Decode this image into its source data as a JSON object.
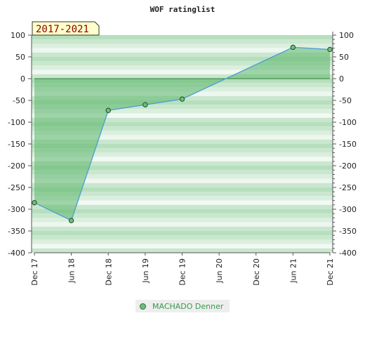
{
  "chart_data": {
    "type": "area",
    "title": "WOF ratinglist",
    "period_badge": "2017-2021",
    "x_labels": [
      "Dec 17",
      "Jun 18",
      "Dec 18",
      "Jun 19",
      "Dec 19",
      "Jun 20",
      "Dec 20",
      "Jun 21",
      "Dec 21"
    ],
    "y_ticks": [
      100,
      50,
      0,
      -50,
      -100,
      -150,
      -200,
      -250,
      -300,
      -350,
      -400
    ],
    "ylim": [
      -400,
      100
    ],
    "series": [
      {
        "name": "MACHADO Denner",
        "points": [
          {
            "x": "Dec 17",
            "y": -285
          },
          {
            "x": "Jun 18",
            "y": -326
          },
          {
            "x": "Dec 18",
            "y": -73
          },
          {
            "x": "Jun 19",
            "y": -60
          },
          {
            "x": "Dec 19",
            "y": -47
          },
          {
            "x": "Jun 21",
            "y": 72
          },
          {
            "x": "Dec 21",
            "y": 67
          }
        ]
      }
    ],
    "colors": {
      "line": "#4a9fd4",
      "area": "#5bb56a",
      "marker": "#6fbf7a",
      "band_dark": "#b6dfbd",
      "band_light": "#f2f9f3"
    },
    "grid": true
  },
  "legend": {
    "label": "MACHADO Denner"
  }
}
